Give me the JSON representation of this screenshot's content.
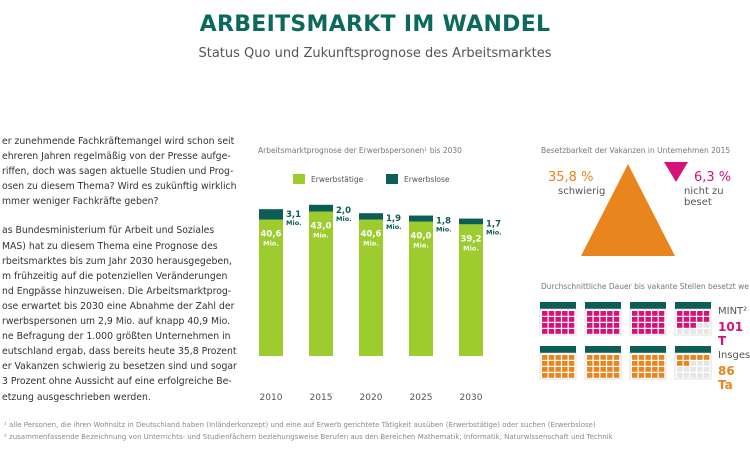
{
  "header": {
    "title": "ARBEITSMARKT IM WANDEL",
    "subtitle": "Status Quo und Zukunftsprognose des Arbeitsmarktes"
  },
  "body": {
    "paragraph1_lines": [
      "er zunehmende Fachkräftemangel wird schon seit",
      "ehreren Jahren regelmäßig von der Presse aufge-",
      "riffen, doch was sagen aktuelle Studien und Prog-",
      "osen zu diesem Thema? Wird es zukünftig wirklich",
      "mmer weniger Fachkräfte geben?"
    ],
    "paragraph2_lines": [
      "as Bundesministerium für Arbeit und Soziales",
      "MAS) hat zu diesem Thema eine Prognose des",
      "rbeitsmarktes bis zum Jahr 2030 herausgegeben,",
      "m frühzeitig auf die potenziellen Veränderungen",
      "nd Engpässe hinzuweisen. Die Arbeitsmarktprog-",
      "ose erwartet bis 2030 eine Abnahme der Zahl der",
      "rwerbspersonen um 2,9 Mio. auf knapp 40,9 Mio.",
      "ne Befragung der 1.000 größten Unternehmen in",
      "eutschland ergab, dass bereits heute 35,8 Prozent",
      "er Vakanzen schwierig zu besetzen sind und sogar",
      "3 Prozent ohne Aussicht auf eine erfolgreiche Be-",
      "etzung ausgeschrieben werden."
    ]
  },
  "colors": {
    "green": "#9ccc2e",
    "dark_teal": "#0b5d55",
    "orange": "#e8851c",
    "magenta": "#d6117a",
    "title_teal": "#0b6a5c"
  },
  "chart_data": {
    "type": "bar",
    "heading": "Arbeitsmarktprognose der Erwerbspersonen¹ bis 2030",
    "categories": [
      "2010",
      "2015",
      "2020",
      "2025",
      "2030"
    ],
    "series": [
      {
        "name": "Erwerbstätige",
        "values": [
          40.6,
          43.0,
          40.6,
          40.0,
          39.2
        ],
        "labels": [
          "40,6",
          "43,0",
          "40,6",
          "40,0",
          "39,2"
        ]
      },
      {
        "name": "Erwerbslose",
        "values": [
          3.1,
          2.0,
          1.9,
          1.8,
          1.7
        ],
        "labels": [
          "3,1",
          "2,0",
          "1,9",
          "1,8",
          "1,7"
        ]
      }
    ],
    "unit_label": "Mio.",
    "stacked": true,
    "legend": "top-left",
    "grid": false
  },
  "vacancy": {
    "heading": "Besetzbarkeit der Vakanzen in Unternehmen 2015",
    "difficult_pct": "35,8 %",
    "difficult_label": "schwierig",
    "impossible_pct": "6,3 %",
    "impossible_label": "nicht zu beset",
    "difficult_value": 35.8,
    "impossible_value": 6.3
  },
  "duration": {
    "heading": "Durchschnittliche Dauer bis vakante Stellen besetzt we",
    "mint_label": "MINT²",
    "mint_value": "101 T",
    "total_label": "Insges",
    "total_value": "86 Ta"
  },
  "footnotes": {
    "note1": "¹ alle Personen, die ihren Wohnsitz in Deutschland haben (Inländerkonzept) und eine auf Erwerb gerichtete Tätigkeit ausüben (Erwerbstätige) oder suchen (Erwerbslose)",
    "note2": "² zusammenfassende Bezeichnung von Unterrichts- und Studienfächern beziehungsweise Berufen aus den Bereichen Mathematik, Informatik, Naturwissenschaft und Technik"
  }
}
